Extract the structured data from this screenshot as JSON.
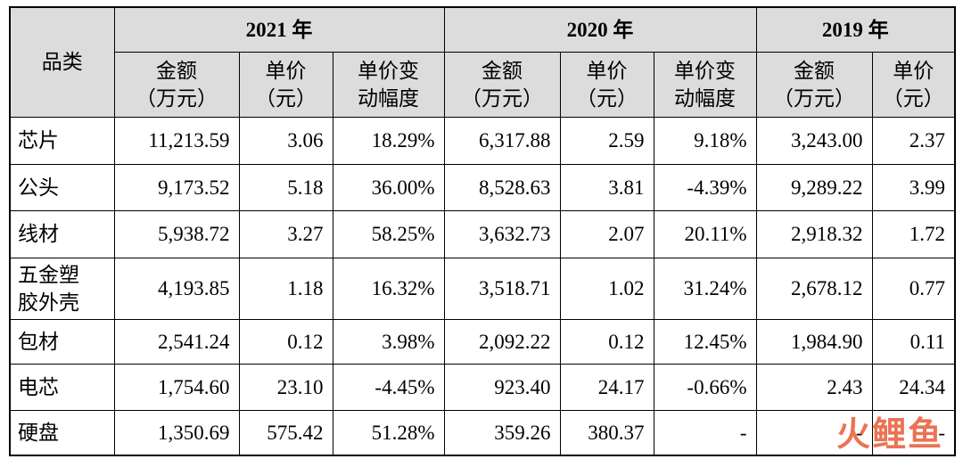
{
  "table": {
    "header": {
      "category": "品类",
      "years": [
        {
          "label": "2021 年",
          "columns": [
            "金额\n（万元）",
            "单价\n（元）",
            "单价变\n动幅度"
          ]
        },
        {
          "label": "2020 年",
          "columns": [
            "金额\n（万元）",
            "单价\n（元）",
            "单价变\n动幅度"
          ]
        },
        {
          "label": "2019 年",
          "columns": [
            "金额\n（万元）",
            "单价\n（元）"
          ]
        }
      ]
    },
    "rows": [
      {
        "category": "芯片",
        "cells": [
          "11,213.59",
          "3.06",
          "18.29%",
          "6,317.88",
          "2.59",
          "9.18%",
          "3,243.00",
          "2.37"
        ]
      },
      {
        "category": "公头",
        "cells": [
          "9,173.52",
          "5.18",
          "36.00%",
          "8,528.63",
          "3.81",
          "-4.39%",
          "9,289.22",
          "3.99"
        ]
      },
      {
        "category": "线材",
        "cells": [
          "5,938.72",
          "3.27",
          "58.25%",
          "3,632.73",
          "2.07",
          "20.11%",
          "2,918.32",
          "1.72"
        ]
      },
      {
        "category": "五金塑\n胶外壳",
        "cells": [
          "4,193.85",
          "1.18",
          "16.32%",
          "3,518.71",
          "1.02",
          "31.24%",
          "2,678.12",
          "0.77"
        ]
      },
      {
        "category": "包材",
        "cells": [
          "2,541.24",
          "0.12",
          "3.98%",
          "2,092.22",
          "0.12",
          "12.45%",
          "1,984.90",
          "0.11"
        ]
      },
      {
        "category": "电芯",
        "cells": [
          "1,754.60",
          "23.10",
          "-4.45%",
          "923.40",
          "24.17",
          "-0.66%",
          "2.43",
          "24.34"
        ]
      },
      {
        "category": "硬盘",
        "cells": [
          "1,350.69",
          "575.42",
          "51.28%",
          "359.26",
          "380.37",
          "-",
          "-",
          "-"
        ]
      }
    ]
  },
  "watermark": "火鲤鱼"
}
